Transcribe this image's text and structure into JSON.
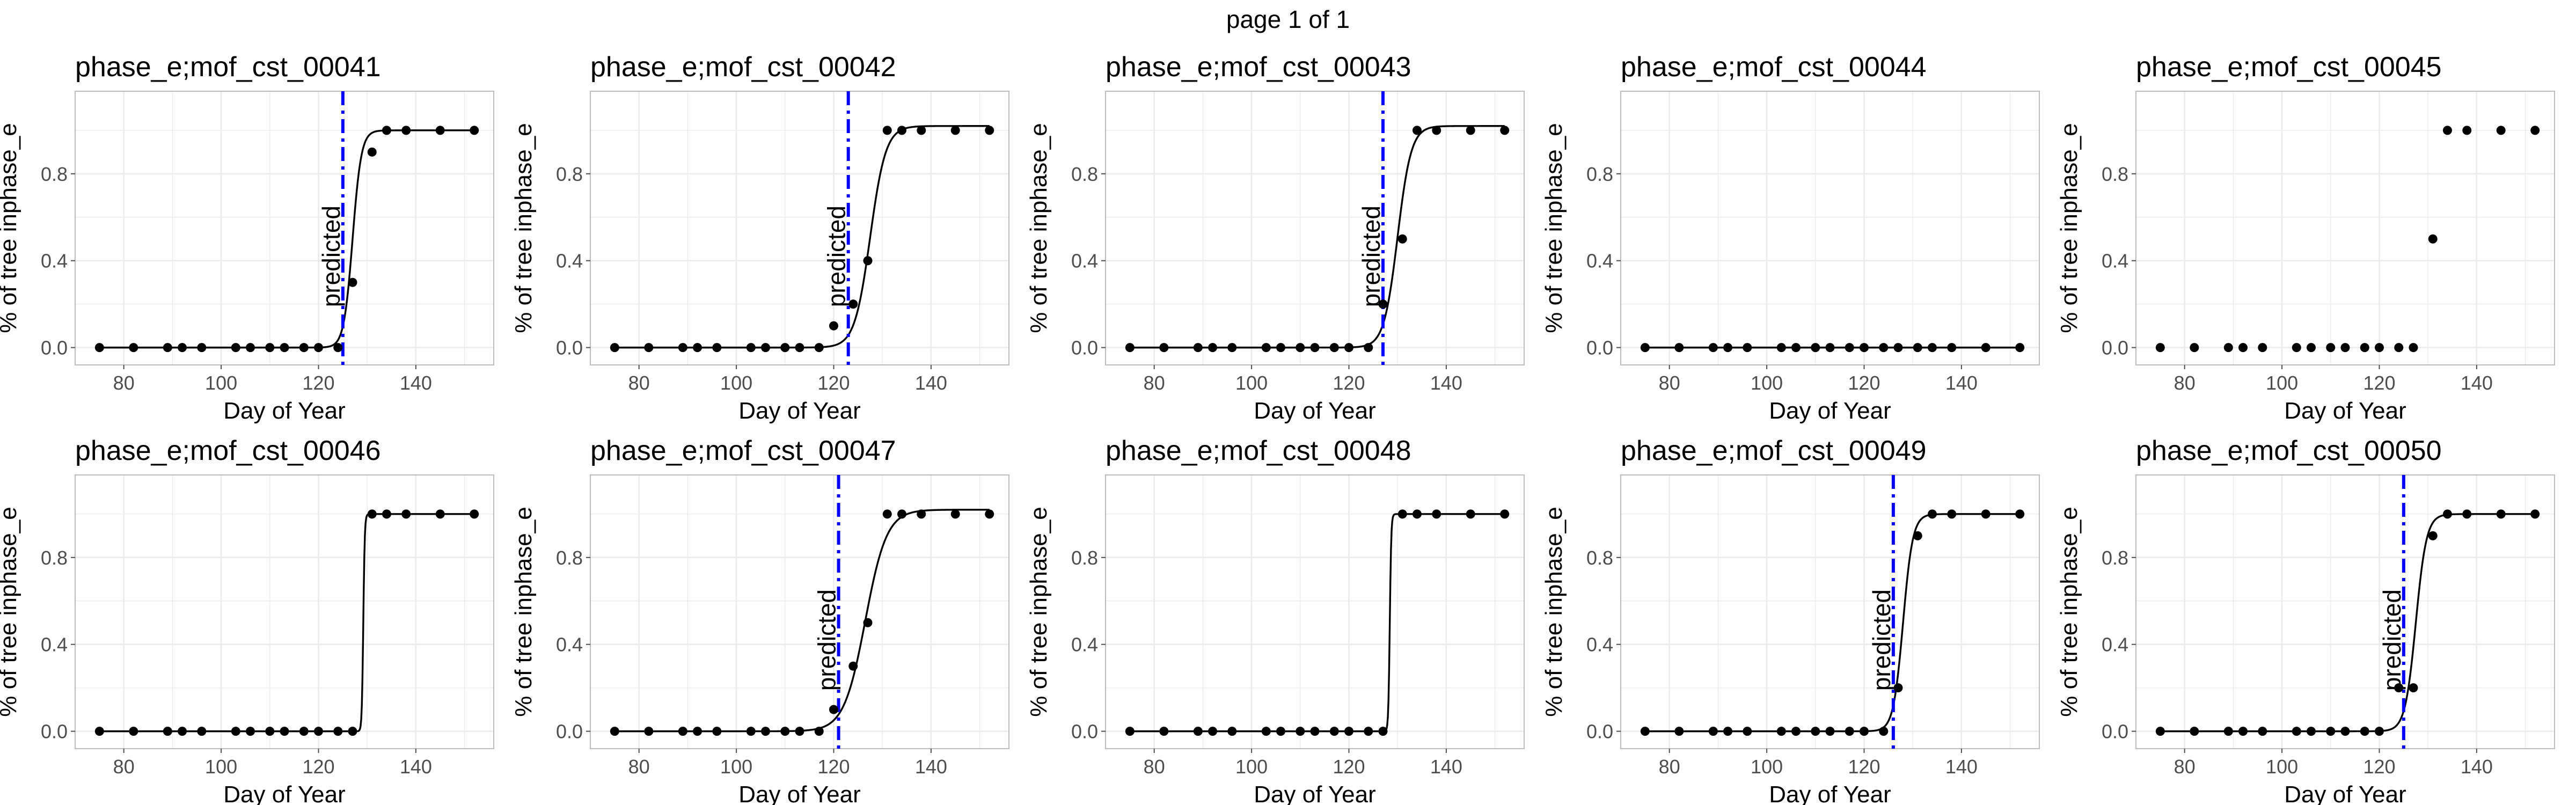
{
  "page_title": "page 1 of 1",
  "chart_data": [
    {
      "type": "scatter",
      "title": "phase_e;mof_cst_00041",
      "xlabel": "Day of Year",
      "ylabel": "% of tree inphase_e",
      "xlim": [
        70,
        156
      ],
      "ylim": [
        -0.08,
        1.18
      ],
      "xticks": [
        80,
        100,
        120,
        140
      ],
      "yticks": [
        0.0,
        0.4,
        0.8
      ],
      "points": {
        "x": [
          75,
          82,
          89,
          92,
          96,
          103,
          106,
          110,
          113,
          117,
          120,
          124,
          127,
          131,
          134,
          138,
          145,
          152
        ],
        "y": [
          0,
          0,
          0,
          0,
          0,
          0,
          0,
          0,
          0,
          0,
          0,
          0,
          0.3,
          0.9,
          1.0,
          1.0,
          1.0,
          1.0
        ]
      },
      "fit": {
        "type": "logistic",
        "midpoint": 127,
        "scale": 0.9,
        "upper": 1.0
      },
      "predicted_line": 125,
      "annotation": "predicted",
      "grid": true
    },
    {
      "type": "scatter",
      "title": "phase_e;mof_cst_00042",
      "xlabel": "Day of Year",
      "ylabel": "% of tree inphase_e",
      "xlim": [
        70,
        156
      ],
      "ylim": [
        -0.08,
        1.18
      ],
      "xticks": [
        80,
        100,
        120,
        140
      ],
      "yticks": [
        0.0,
        0.4,
        0.8
      ],
      "points": {
        "x": [
          75,
          82,
          89,
          92,
          96,
          103,
          106,
          110,
          113,
          117,
          120,
          124,
          127,
          131,
          134,
          138,
          145,
          152
        ],
        "y": [
          0,
          0,
          0,
          0,
          0,
          0,
          0,
          0,
          0,
          0,
          0.1,
          0.2,
          0.4,
          1.0,
          1.0,
          1.0,
          1.0,
          1.0
        ]
      },
      "fit": {
        "type": "logistic",
        "midpoint": 127.5,
        "scale": 1.6,
        "upper": 1.02
      },
      "predicted_line": 123,
      "annotation": "predicted",
      "grid": true
    },
    {
      "type": "scatter",
      "title": "phase_e;mof_cst_00043",
      "xlabel": "Day of Year",
      "ylabel": "% of tree inphase_e",
      "xlim": [
        70,
        156
      ],
      "ylim": [
        -0.08,
        1.18
      ],
      "xticks": [
        80,
        100,
        120,
        140
      ],
      "yticks": [
        0.0,
        0.4,
        0.8
      ],
      "points": {
        "x": [
          75,
          82,
          89,
          92,
          96,
          103,
          106,
          110,
          113,
          117,
          120,
          124,
          127,
          131,
          134,
          138,
          145,
          152
        ],
        "y": [
          0,
          0,
          0,
          0,
          0,
          0,
          0,
          0,
          0,
          0,
          0,
          0,
          0.2,
          0.5,
          1.0,
          1.0,
          1.0,
          1.0
        ]
      },
      "fit": {
        "type": "logistic",
        "midpoint": 130,
        "scale": 1.4,
        "upper": 1.02
      },
      "predicted_line": 127,
      "annotation": "predicted",
      "grid": true
    },
    {
      "type": "scatter",
      "title": "phase_e;mof_cst_00044",
      "xlabel": "Day of Year",
      "ylabel": "% of tree inphase_e",
      "xlim": [
        70,
        156
      ],
      "ylim": [
        -0.08,
        1.18
      ],
      "xticks": [
        80,
        100,
        120,
        140
      ],
      "yticks": [
        0.0,
        0.4,
        0.8
      ],
      "points": {
        "x": [
          75,
          82,
          89,
          92,
          96,
          103,
          106,
          110,
          113,
          117,
          120,
          124,
          127,
          131,
          134,
          138,
          145,
          152
        ],
        "y": [
          0,
          0,
          0,
          0,
          0,
          0,
          0,
          0,
          0,
          0,
          0,
          0,
          0,
          0,
          0,
          0,
          0,
          0
        ]
      },
      "fit": {
        "type": "flat",
        "value": 0
      },
      "grid": true
    },
    {
      "type": "scatter",
      "title": "phase_e;mof_cst_00045",
      "xlabel": "Day of Year",
      "ylabel": "% of tree inphase_e",
      "xlim": [
        70,
        156
      ],
      "ylim": [
        -0.08,
        1.18
      ],
      "xticks": [
        80,
        100,
        120,
        140
      ],
      "yticks": [
        0.0,
        0.4,
        0.8
      ],
      "points": {
        "x": [
          75,
          82,
          89,
          92,
          96,
          103,
          106,
          110,
          113,
          117,
          120,
          124,
          127,
          131,
          134,
          138,
          145,
          152
        ],
        "y": [
          0,
          0,
          0,
          0,
          0,
          0,
          0,
          0,
          0,
          0,
          0,
          0,
          0,
          0.5,
          1.0,
          1.0,
          1.0,
          1.0
        ]
      },
      "grid": true
    },
    {
      "type": "scatter",
      "title": "phase_e;mof_cst_00046",
      "xlabel": "Day of Year",
      "ylabel": "% of tree inphase_e",
      "xlim": [
        70,
        156
      ],
      "ylim": [
        -0.08,
        1.18
      ],
      "xticks": [
        80,
        100,
        120,
        140
      ],
      "yticks": [
        0.0,
        0.4,
        0.8
      ],
      "points": {
        "x": [
          75,
          82,
          89,
          92,
          96,
          103,
          106,
          110,
          113,
          117,
          120,
          124,
          127,
          131,
          134,
          138,
          145,
          152
        ],
        "y": [
          0,
          0,
          0,
          0,
          0,
          0,
          0,
          0,
          0,
          0,
          0,
          0,
          0,
          1.0,
          1.0,
          1.0,
          1.0,
          1.0
        ]
      },
      "fit": {
        "type": "logistic",
        "midpoint": 129.2,
        "scale": 0.15,
        "upper": 1.0
      },
      "grid": true
    },
    {
      "type": "scatter",
      "title": "phase_e;mof_cst_00047",
      "xlabel": "Day of Year",
      "ylabel": "% of tree inphase_e",
      "xlim": [
        70,
        156
      ],
      "ylim": [
        -0.08,
        1.18
      ],
      "xticks": [
        80,
        100,
        120,
        140
      ],
      "yticks": [
        0.0,
        0.4,
        0.8
      ],
      "points": {
        "x": [
          75,
          82,
          89,
          92,
          96,
          103,
          106,
          110,
          113,
          117,
          120,
          124,
          127,
          131,
          134,
          138,
          145,
          152
        ],
        "y": [
          0,
          0,
          0,
          0,
          0,
          0,
          0,
          0,
          0,
          0,
          0.1,
          0.3,
          0.5,
          1.0,
          1.0,
          1.0,
          1.0,
          1.0
        ]
      },
      "fit": {
        "type": "logistic",
        "midpoint": 126.5,
        "scale": 2.2,
        "upper": 1.02
      },
      "predicted_line": 121,
      "annotation": "predicted",
      "grid": true
    },
    {
      "type": "scatter",
      "title": "phase_e;mof_cst_00048",
      "xlabel": "Day of Year",
      "ylabel": "% of tree inphase_e",
      "xlim": [
        70,
        156
      ],
      "ylim": [
        -0.08,
        1.18
      ],
      "xticks": [
        80,
        100,
        120,
        140
      ],
      "yticks": [
        0.0,
        0.4,
        0.8
      ],
      "points": {
        "x": [
          75,
          82,
          89,
          92,
          96,
          103,
          106,
          110,
          113,
          117,
          120,
          124,
          127,
          131,
          134,
          138,
          145,
          152
        ],
        "y": [
          0,
          0,
          0,
          0,
          0,
          0,
          0,
          0,
          0,
          0,
          0,
          0,
          0,
          1.0,
          1.0,
          1.0,
          1.0,
          1.0
        ]
      },
      "fit": {
        "type": "logistic",
        "midpoint": 128.4,
        "scale": 0.15,
        "upper": 1.0
      },
      "grid": true
    },
    {
      "type": "scatter",
      "title": "phase_e;mof_cst_00049",
      "xlabel": "Day of Year",
      "ylabel": "% of tree inphase_e",
      "xlim": [
        70,
        156
      ],
      "ylim": [
        -0.08,
        1.18
      ],
      "xticks": [
        80,
        100,
        120,
        140
      ],
      "yticks": [
        0.0,
        0.4,
        0.8
      ],
      "points": {
        "x": [
          75,
          82,
          89,
          92,
          96,
          103,
          106,
          110,
          113,
          117,
          120,
          124,
          127,
          131,
          134,
          138,
          145,
          152
        ],
        "y": [
          0,
          0,
          0,
          0,
          0,
          0,
          0,
          0,
          0,
          0,
          0,
          0,
          0.2,
          0.9,
          1.0,
          1.0,
          1.0,
          1.0
        ]
      },
      "fit": {
        "type": "logistic",
        "midpoint": 128,
        "scale": 1.0,
        "upper": 1.0
      },
      "predicted_line": 126,
      "annotation": "predicted",
      "grid": true
    },
    {
      "type": "scatter",
      "title": "phase_e;mof_cst_00050",
      "xlabel": "Day of Year",
      "ylabel": "% of tree inphase_e",
      "xlim": [
        70,
        156
      ],
      "ylim": [
        -0.08,
        1.18
      ],
      "xticks": [
        80,
        100,
        120,
        140
      ],
      "yticks": [
        0.0,
        0.4,
        0.8
      ],
      "points": {
        "x": [
          75,
          82,
          89,
          92,
          96,
          103,
          106,
          110,
          113,
          117,
          120,
          124,
          127,
          131,
          134,
          138,
          145,
          152
        ],
        "y": [
          0,
          0,
          0,
          0,
          0,
          0,
          0,
          0,
          0,
          0,
          0,
          0.2,
          0.2,
          0.9,
          1.0,
          1.0,
          1.0,
          1.0
        ]
      },
      "fit": {
        "type": "logistic",
        "midpoint": 127.5,
        "scale": 1.1,
        "upper": 1.0
      },
      "predicted_line": 125,
      "annotation": "predicted",
      "grid": true
    }
  ]
}
